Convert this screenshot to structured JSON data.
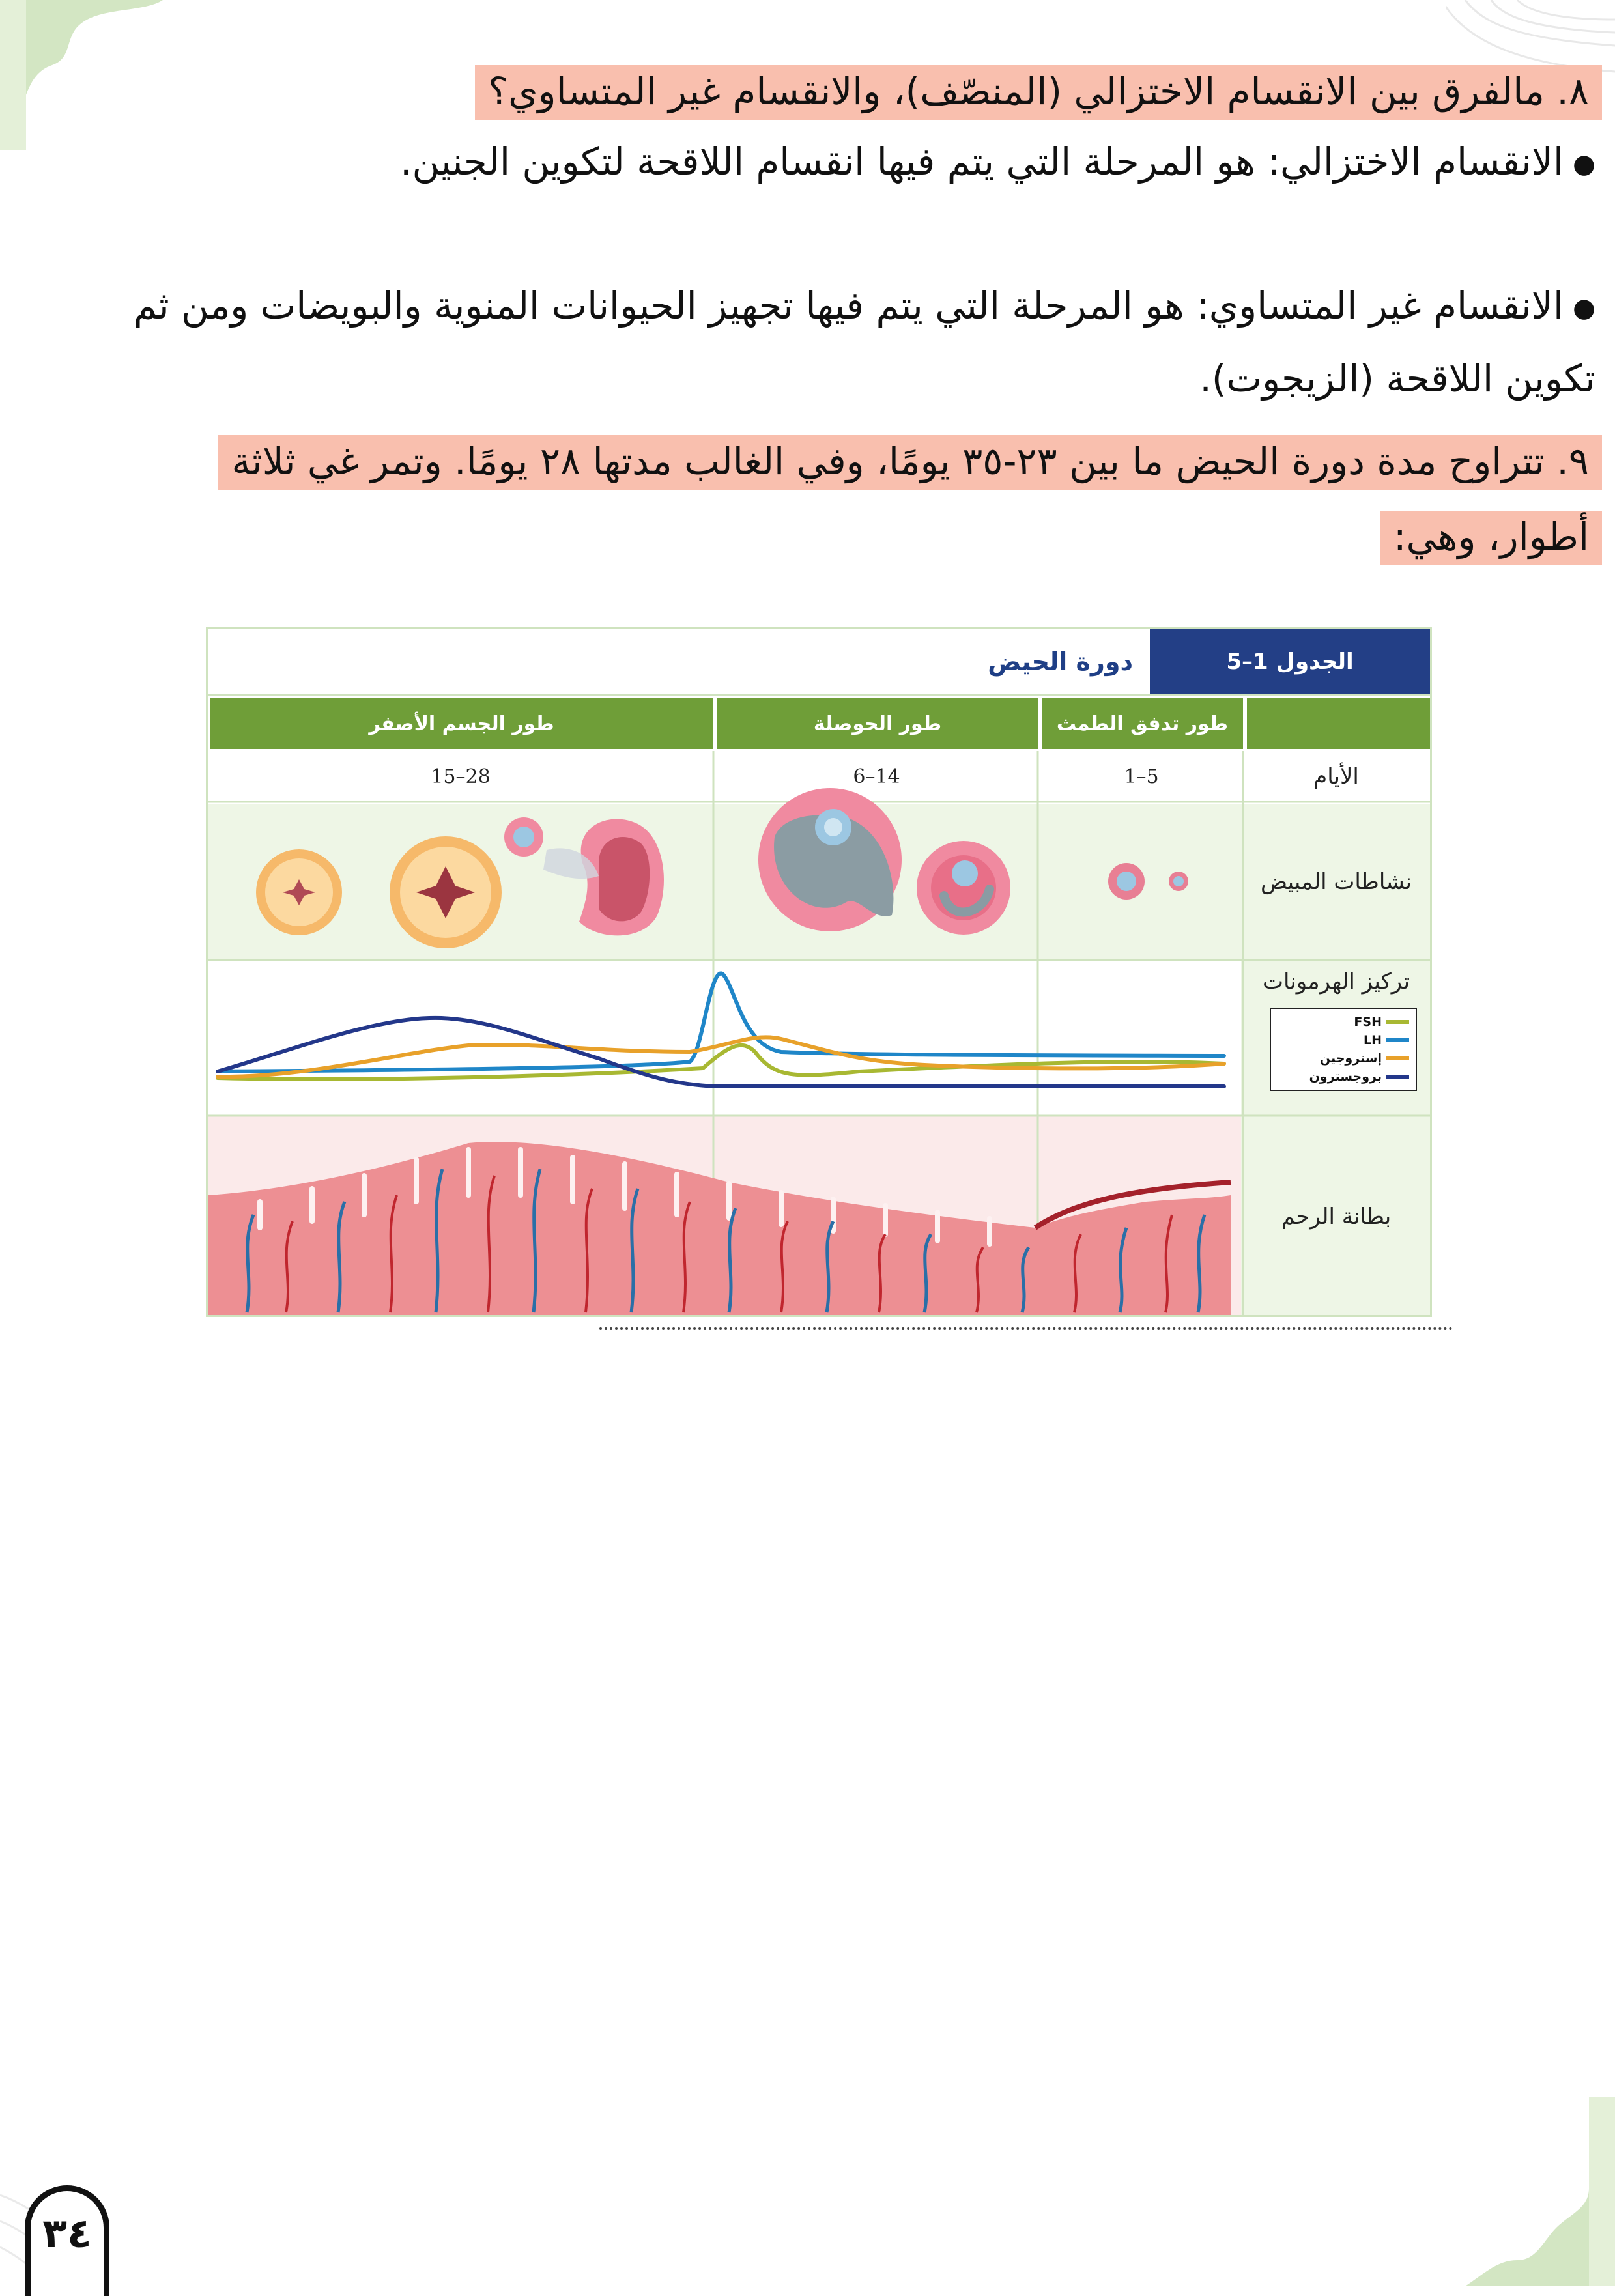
{
  "q8": {
    "question": "٨. مالفرق بين الانقسام الاختزالي (المنصّف)، والانقسام غير المتساوي؟",
    "answer1": "الانقسام الاختزالي: هو المرحلة التي يتم فيها انقسام اللاقحة لتكوين الجنين.",
    "answer2": "الانقسام غير المتساوي: هو المرحلة التي يتم فيها تجهيز الحيوانات المنوية والبويضات ومن ثم تكوين اللاقحة (الزيجوت)."
  },
  "q9": {
    "text": "٩. تتراوح مدة دورة الحيض ما بين ٢٣-٣٥ يومًا، وفي الغالب مدتها ٢٨ يومًا. وتمر غي ثلاثة أطوار، وهي:"
  },
  "table": {
    "badge": "الجدول 1–5",
    "title": "دورة الحيض",
    "phases": [
      "طور تدفق الطمث",
      "طور الحوصلة",
      "طور الجسم الأصفر"
    ],
    "row_labels": {
      "days": "الأيام",
      "ovary": "نشاطات المبيض",
      "hormones": "تركيز الهرمونات",
      "uterus": "بطانة الرحم"
    },
    "days": [
      "1–5",
      "6–14",
      "15–28"
    ],
    "legend": [
      {
        "name": "FSH",
        "color": "#a8b832"
      },
      {
        "name": "LH",
        "color": "#1f86c8"
      },
      {
        "name": "إستروجين",
        "color": "#e8a12a"
      },
      {
        "name": "بروجسترون",
        "color": "#23378a"
      }
    ]
  },
  "page_number": "٣٤",
  "colors": {
    "highlight": "#f9bfae",
    "header_green": "#6f9e38",
    "badge_blue": "#233f86",
    "cell_bg": "#eef6e6",
    "border": "#cfe3bf"
  }
}
